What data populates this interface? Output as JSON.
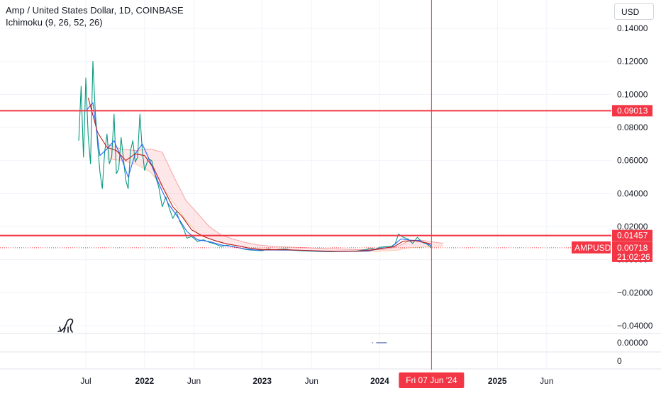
{
  "header": {
    "symbol_title": "Amp / United States Dollar, 1D, COINBASE",
    "indicator": "Ichimoku (9, 26, 52, 26)",
    "currency_button": "USD"
  },
  "chart_data": {
    "type": "line",
    "title": "Amp / United States Dollar, 1D, COINBASE",
    "xlabel": "",
    "ylabel": "",
    "ylim": [
      -0.045,
      0.15
    ],
    "y_ticks": [
      "0.14000",
      "0.12000",
      "0.10000",
      "0.08000",
      "0.06000",
      "0.04000",
      "0.02000",
      "0.00000",
      "−0.02000",
      "−0.04000"
    ],
    "y_tick_values": [
      0.14,
      0.12,
      0.1,
      0.08,
      0.06,
      0.04,
      0.02,
      0.0,
      -0.02,
      -0.04
    ],
    "x_ticks": [
      {
        "label": "Jul",
        "t": 2021.5,
        "bold": false
      },
      {
        "label": "2022",
        "t": 2022.0,
        "bold": true
      },
      {
        "label": "Jun",
        "t": 2022.42,
        "bold": false
      },
      {
        "label": "2023",
        "t": 2023.0,
        "bold": true
      },
      {
        "label": "Jun",
        "t": 2023.42,
        "bold": false
      },
      {
        "label": "2024",
        "t": 2024.0,
        "bold": true
      },
      {
        "label": "2025",
        "t": 2025.0,
        "bold": true
      },
      {
        "label": "Jun",
        "t": 2025.42,
        "bold": false
      }
    ],
    "xlim": [
      2020.77,
      2025.97
    ],
    "series": [
      {
        "key": "price",
        "color": "#089981",
        "x": [
          2021.44,
          2021.46,
          2021.48,
          2021.49,
          2021.5,
          2021.52,
          2021.54,
          2021.56,
          2021.58,
          2021.6,
          2021.62,
          2021.64,
          2021.66,
          2021.68,
          2021.7,
          2021.72,
          2021.74,
          2021.76,
          2021.78,
          2021.8,
          2021.82,
          2021.84,
          2021.86,
          2021.88,
          2021.9,
          2021.92,
          2021.94,
          2021.96,
          2021.98,
          2022.0,
          2022.03,
          2022.06,
          2022.09,
          2022.12,
          2022.15,
          2022.18,
          2022.21,
          2022.24,
          2022.27,
          2022.3,
          2022.33,
          2022.36,
          2022.4,
          2022.45,
          2022.5,
          2022.55,
          2022.6,
          2022.65,
          2022.7,
          2022.75,
          2022.8,
          2022.85,
          2022.9,
          2022.95,
          2023.0,
          2023.05,
          2023.1,
          2023.15,
          2023.2,
          2023.25,
          2023.3,
          2023.4,
          2023.5,
          2023.6,
          2023.7,
          2023.8,
          2023.88,
          2023.92,
          2023.96,
          2024.0,
          2024.05,
          2024.1,
          2024.13,
          2024.16,
          2024.2,
          2024.24,
          2024.28,
          2024.32,
          2024.36,
          2024.4,
          2024.44
        ],
        "values": [
          0.072,
          0.105,
          0.062,
          0.085,
          0.11,
          0.075,
          0.058,
          0.12,
          0.09,
          0.07,
          0.053,
          0.043,
          0.065,
          0.076,
          0.058,
          0.062,
          0.088,
          0.052,
          0.055,
          0.074,
          0.061,
          0.048,
          0.043,
          0.066,
          0.072,
          0.059,
          0.062,
          0.088,
          0.066,
          0.054,
          0.061,
          0.06,
          0.051,
          0.044,
          0.032,
          0.038,
          0.031,
          0.025,
          0.029,
          0.023,
          0.019,
          0.013,
          0.014,
          0.011,
          0.012,
          0.0105,
          0.0095,
          0.008,
          0.0088,
          0.0078,
          0.0072,
          0.0063,
          0.0058,
          0.0056,
          0.0054,
          0.0064,
          0.0058,
          0.0062,
          0.0063,
          0.0057,
          0.0055,
          0.0052,
          0.0049,
          0.0048,
          0.005,
          0.0052,
          0.006,
          0.007,
          0.0062,
          0.0075,
          0.0078,
          0.008,
          0.0095,
          0.0155,
          0.0135,
          0.0125,
          0.0098,
          0.0135,
          0.0105,
          0.0095,
          0.00718
        ]
      },
      {
        "key": "conversion",
        "color": "#2962ff",
        "x": [
          2021.5,
          2021.56,
          2021.62,
          2021.68,
          2021.74,
          2021.8,
          2021.86,
          2021.92,
          2021.98,
          2022.05,
          2022.12,
          2022.2,
          2022.28,
          2022.36,
          2022.45,
          2022.55,
          2022.65,
          2022.75,
          2022.85,
          2022.95,
          2023.1,
          2023.3,
          2023.5,
          2023.7,
          2023.9,
          2024.0,
          2024.1,
          2024.18,
          2024.26,
          2024.34,
          2024.44
        ],
        "values": [
          0.09,
          0.095,
          0.063,
          0.067,
          0.072,
          0.062,
          0.05,
          0.064,
          0.07,
          0.059,
          0.046,
          0.034,
          0.026,
          0.017,
          0.012,
          0.011,
          0.0089,
          0.0079,
          0.0065,
          0.0058,
          0.0058,
          0.0057,
          0.0051,
          0.0049,
          0.0052,
          0.0068,
          0.0076,
          0.0125,
          0.0118,
          0.0115,
          0.0085
        ]
      },
      {
        "key": "base",
        "color": "#b71c1c",
        "x": [
          2021.52,
          2021.6,
          2021.68,
          2021.76,
          2021.84,
          2021.92,
          2022.0,
          2022.08,
          2022.16,
          2022.24,
          2022.32,
          2022.4,
          2022.5,
          2022.6,
          2022.7,
          2022.8,
          2022.9,
          2023.0,
          2023.2,
          2023.4,
          2023.6,
          2023.8,
          2023.95,
          2024.05,
          2024.12,
          2024.2,
          2024.3,
          2024.44
        ],
        "values": [
          0.098,
          0.077,
          0.068,
          0.066,
          0.06,
          0.064,
          0.063,
          0.055,
          0.043,
          0.032,
          0.026,
          0.018,
          0.014,
          0.0115,
          0.0095,
          0.0083,
          0.0068,
          0.006,
          0.006,
          0.0055,
          0.005,
          0.0051,
          0.006,
          0.0071,
          0.0078,
          0.0112,
          0.0115,
          0.0095
        ]
      }
    ],
    "cloud": {
      "color": "#f7525f",
      "x": [
        2021.68,
        2021.8,
        2021.92,
        2022.05,
        2022.15,
        2022.25,
        2022.35,
        2022.45,
        2022.55,
        2022.65,
        2022.75,
        2022.85,
        2022.95,
        2023.1,
        2023.3,
        2023.5,
        2023.7,
        2023.9,
        2024.05,
        2024.15,
        2024.25,
        2024.35,
        2024.44,
        2024.54
      ],
      "upper": [
        0.07,
        0.067,
        0.066,
        0.067,
        0.065,
        0.05,
        0.036,
        0.028,
        0.02,
        0.015,
        0.0125,
        0.0105,
        0.009,
        0.0079,
        0.0074,
        0.0068,
        0.0063,
        0.006,
        0.0063,
        0.0078,
        0.0115,
        0.0118,
        0.0108,
        0.0099
      ],
      "lower": [
        0.061,
        0.06,
        0.058,
        0.053,
        0.044,
        0.034,
        0.024,
        0.016,
        0.0125,
        0.0102,
        0.009,
        0.0075,
        0.0066,
        0.006,
        0.0057,
        0.0053,
        0.005,
        0.005,
        0.0052,
        0.0058,
        0.0072,
        0.0075,
        0.0081,
        0.0082
      ]
    },
    "horizontal_lines": [
      {
        "value": 0.09013,
        "label": "0.09013",
        "color": "#f23645"
      },
      {
        "value": 0.01457,
        "label": "0.01457",
        "color": "#f23645"
      }
    ],
    "last_price": {
      "symbol": "AMPUSD",
      "value": 0.00718,
      "label": "0.00718",
      "countdown": "21:02:26",
      "color": "#f23645"
    },
    "crosshair": {
      "t": 2024.44,
      "date_label": "Fri 07 Jun '24"
    },
    "volume_pane": {
      "ticks": [
        "0.00000"
      ],
      "segments": [
        {
          "t0": 2023.97,
          "t1": 2024.06
        }
      ]
    },
    "third_pane": {
      "ticks": [
        "0"
      ]
    }
  }
}
